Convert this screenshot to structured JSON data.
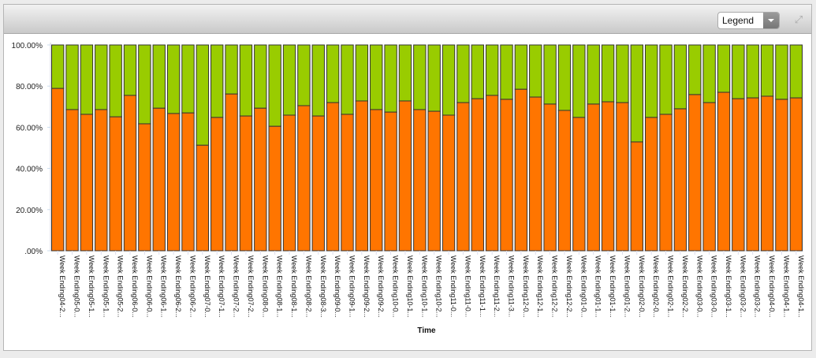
{
  "toolbar": {
    "legend_label": "Legend",
    "expand_icon": "expand-arrows-icon"
  },
  "colors": {
    "orange": "#FF7500",
    "green": "#99CC00"
  },
  "chart_data": {
    "type": "bar",
    "stacked": true,
    "normalized": true,
    "xlabel": "Time",
    "ylabel": "",
    "ylim": [
      0,
      100
    ],
    "yticks": [
      ".00%",
      "20.00%",
      "40.00%",
      "60.00%",
      "80.00%",
      "100.00%"
    ],
    "grid": false,
    "categories": [
      "Week Ending04-2...",
      "Week Ending05-0...",
      "Week Ending05-1...",
      "Week Ending05-1...",
      "Week Ending05-2...",
      "Week Ending06-0...",
      "Week Ending06-0...",
      "Week Ending06-1...",
      "Week Ending06-2...",
      "Week Ending06-2...",
      "Week Ending07-0...",
      "Week Ending07-1...",
      "Week Ending07-2...",
      "Week Ending07-2...",
      "Week Ending08-0...",
      "Week Ending08-1...",
      "Week Ending08-1...",
      "Week Ending08-2...",
      "Week Ending08-3...",
      "Week Ending09-0...",
      "Week Ending09-1...",
      "Week Ending09-2...",
      "Week Ending09-2...",
      "Week Ending10-0...",
      "Week Ending10-1...",
      "Week Ending10-1...",
      "Week Ending10-2...",
      "Week Ending11-0...",
      "Week Ending11-0...",
      "Week Ending11-1...",
      "Week Ending11-2...",
      "Week Ending11-3...",
      "Week Ending12-0...",
      "Week Ending12-1...",
      "Week Ending12-2...",
      "Week Ending12-2...",
      "Week Ending01-0...",
      "Week Ending01-1...",
      "Week Ending01-1...",
      "Week Ending01-2...",
      "Week Ending02-0...",
      "Week Ending02-0...",
      "Week Ending02-1...",
      "Week Ending02-2...",
      "Week Ending03-0...",
      "Week Ending03-0...",
      "Week Ending03-1...",
      "Week Ending03-2...",
      "Week Ending03-2...",
      "Week Ending04-0...",
      "Week Ending04-1...",
      "Week Ending04-1..."
    ],
    "series": [
      {
        "color": "#FF7500",
        "values": [
          78.9,
          68.6,
          66.3,
          68.6,
          65.1,
          75.5,
          61.7,
          69.3,
          66.7,
          67.0,
          51.3,
          64.8,
          76.2,
          65.5,
          69.3,
          60.5,
          65.9,
          70.5,
          65.5,
          72.0,
          66.3,
          72.8,
          68.6,
          67.4,
          72.8,
          68.6,
          67.8,
          65.9,
          72.0,
          73.9,
          75.5,
          73.6,
          78.5,
          74.7,
          71.3,
          68.2,
          64.8,
          71.3,
          72.4,
          72.0,
          52.9,
          64.8,
          66.3,
          69.0,
          75.9,
          72.0,
          77.0,
          73.9,
          74.3,
          75.1,
          73.6,
          74.3
        ]
      },
      {
        "color": "#99CC00",
        "values": [
          21.1,
          31.4,
          33.7,
          31.4,
          34.9,
          24.5,
          38.3,
          30.7,
          33.3,
          33.0,
          48.7,
          35.2,
          23.8,
          34.5,
          30.7,
          39.5,
          34.1,
          29.5,
          34.5,
          28.0,
          33.7,
          27.2,
          31.4,
          32.6,
          27.2,
          31.4,
          32.2,
          34.1,
          28.0,
          26.1,
          24.5,
          26.4,
          21.5,
          25.3,
          28.7,
          31.8,
          35.2,
          28.7,
          27.6,
          28.0,
          47.1,
          35.2,
          33.7,
          31.0,
          24.1,
          28.0,
          23.0,
          26.1,
          25.7,
          24.9,
          26.4,
          25.7
        ]
      }
    ]
  }
}
